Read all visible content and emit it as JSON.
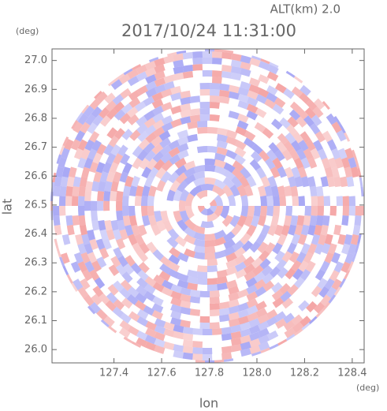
{
  "chart_data": {
    "type": "radar-ppi",
    "title": "2017/10/24 11:31:00",
    "altitude_label": "ALT(km) 2.0",
    "x_label": "lon",
    "y_label": "lat",
    "x_unit": "(deg)",
    "y_unit": "(deg)",
    "xlim": [
      127.14,
      128.45
    ],
    "xticks": [
      {
        "value": 127.4,
        "label": "127.4"
      },
      {
        "value": 127.6,
        "label": "127.6"
      },
      {
        "value": 127.8,
        "label": "127.8"
      },
      {
        "value": 128.0,
        "label": "128.0"
      },
      {
        "value": 128.2,
        "label": "128.2"
      },
      {
        "value": 128.4,
        "label": "128.4"
      }
    ],
    "ylim": [
      25.954,
      27.04
    ],
    "yticks": [
      {
        "value": 26.0,
        "label": "26.0"
      },
      {
        "value": 26.1,
        "label": "26.1"
      },
      {
        "value": 26.2,
        "label": "26.2"
      },
      {
        "value": 26.3,
        "label": "26.3"
      },
      {
        "value": 26.4,
        "label": "26.4"
      },
      {
        "value": 26.5,
        "label": "26.5"
      },
      {
        "value": 26.6,
        "label": "26.6"
      },
      {
        "value": 26.7,
        "label": "26.7"
      },
      {
        "value": 26.8,
        "label": "26.8"
      },
      {
        "value": 26.9,
        "label": "26.9"
      },
      {
        "value": 27.0,
        "label": "27.0"
      }
    ],
    "colors": [
      "#f08080",
      "#8080f0"
    ]
  }
}
